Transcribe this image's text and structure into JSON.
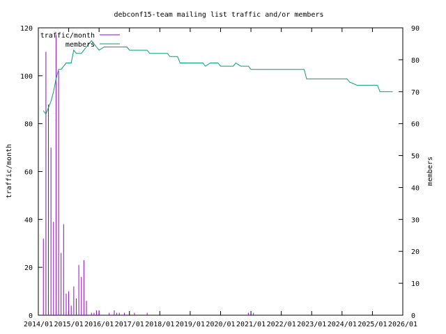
{
  "chart_data": {
    "type": "bar+line",
    "title": "debconf15-team mailing list traffic and/or members",
    "ylabel": "traffic/month",
    "y2label": "members",
    "xlim": [
      "2014-01",
      "2026-01"
    ],
    "ylim": [
      0,
      120
    ],
    "y2lim": [
      0,
      90
    ],
    "xticks": [
      "2014/01",
      "2015/01",
      "2016/01",
      "2017/01",
      "2018/01",
      "2019/01",
      "2020/01",
      "2021/01",
      "2022/01",
      "2023/01",
      "2024/01",
      "2025/01",
      "2026/01"
    ],
    "yticks": [
      "0",
      "20",
      "40",
      "60",
      "80",
      "100",
      "120"
    ],
    "y2ticks": [
      "0",
      "10",
      "20",
      "30",
      "40",
      "50",
      "60",
      "70",
      "80",
      "90"
    ],
    "legend_position": "top-left",
    "colors": {
      "traffic": "#9400d3",
      "members": "#009e73"
    },
    "series": [
      {
        "name": "traffic/month",
        "type": "impulse",
        "points": [
          [
            "2014-03",
            32
          ],
          [
            "2014-04",
            110
          ],
          [
            "2014-05",
            88
          ],
          [
            "2014-06",
            70
          ],
          [
            "2014-07",
            39
          ],
          [
            "2014-08",
            117
          ],
          [
            "2014-09",
            102
          ],
          [
            "2014-10",
            26
          ],
          [
            "2014-11",
            38
          ],
          [
            "2014-12",
            9
          ],
          [
            "2015-01",
            10
          ],
          [
            "2015-02",
            4
          ],
          [
            "2015-03",
            12
          ],
          [
            "2015-04",
            7
          ],
          [
            "2015-05",
            21
          ],
          [
            "2015-06",
            16
          ],
          [
            "2015-07",
            23
          ],
          [
            "2015-08",
            6
          ],
          [
            "2015-10",
            1
          ],
          [
            "2015-11",
            1
          ],
          [
            "2015-12",
            2
          ],
          [
            "2016-01",
            2
          ],
          [
            "2016-05",
            1
          ],
          [
            "2016-07",
            2
          ],
          [
            "2016-08",
            1
          ],
          [
            "2016-09",
            1
          ],
          [
            "2016-11",
            1
          ],
          [
            "2017-03",
            1
          ],
          [
            "2017-08",
            1
          ],
          [
            "2020-12",
            1
          ],
          [
            "2021-02",
            1
          ]
        ]
      },
      {
        "name": "members",
        "type": "line",
        "points": [
          [
            "2014-03",
            64
          ],
          [
            "2014-04",
            63
          ],
          [
            "2014-05",
            65
          ],
          [
            "2014-06",
            67
          ],
          [
            "2014-07",
            70
          ],
          [
            "2014-08",
            74
          ],
          [
            "2014-09",
            77
          ],
          [
            "2014-10",
            77
          ],
          [
            "2014-11",
            78
          ],
          [
            "2014-12",
            79
          ],
          [
            "2015-01",
            79
          ],
          [
            "2015-02",
            79
          ],
          [
            "2015-03",
            83
          ],
          [
            "2015-04",
            82
          ],
          [
            "2015-05",
            82
          ],
          [
            "2015-06",
            82
          ],
          [
            "2015-07",
            83
          ],
          [
            "2015-08",
            84
          ],
          [
            "2015-09",
            85
          ],
          [
            "2015-10",
            86
          ],
          [
            "2015-11",
            85
          ],
          [
            "2015-12",
            84
          ],
          [
            "2016-01",
            83
          ],
          [
            "2016-03",
            84
          ],
          [
            "2016-05",
            84
          ],
          [
            "2016-12",
            84
          ],
          [
            "2017-01",
            83
          ],
          [
            "2017-08",
            83
          ],
          [
            "2017-09",
            82
          ],
          [
            "2018-04",
            82
          ],
          [
            "2018-05",
            81
          ],
          [
            "2018-08",
            81
          ],
          [
            "2018-09",
            79
          ],
          [
            "2019-06",
            79
          ],
          [
            "2019-07",
            78
          ],
          [
            "2019-09",
            79
          ],
          [
            "2019-12",
            79
          ],
          [
            "2020-01",
            78
          ],
          [
            "2020-06",
            78
          ],
          [
            "2020-07",
            79
          ],
          [
            "2020-09",
            78
          ],
          [
            "2020-12",
            78
          ],
          [
            "2021-01",
            77
          ],
          [
            "2022-10",
            77
          ],
          [
            "2022-11",
            74
          ],
          [
            "2024-03",
            74
          ],
          [
            "2024-04",
            73
          ],
          [
            "2024-07",
            72
          ],
          [
            "2025-03",
            72
          ],
          [
            "2025-04",
            70
          ],
          [
            "2025-09",
            70
          ]
        ]
      }
    ]
  }
}
